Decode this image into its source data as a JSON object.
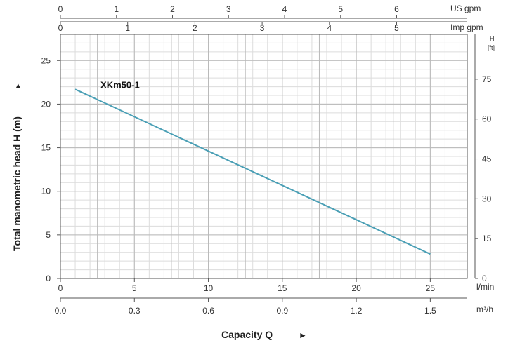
{
  "chart_data": {
    "type": "line",
    "title": "",
    "xlabel": "Capacity Q",
    "xlabel_arrow": "►",
    "ylabel": "Total manometric head H (m)",
    "ylabel_arrow": "►",
    "grid": true,
    "x_axes": {
      "lmin": {
        "unit": "l/min",
        "range": [
          0,
          27.5
        ],
        "ticks": [
          "0",
          "5",
          "10",
          "15",
          "20",
          "25"
        ],
        "tick_values": [
          0,
          5,
          10,
          15,
          20,
          25
        ]
      },
      "m3h": {
        "unit": "m³/h",
        "range": [
          0,
          1.65
        ],
        "ticks": [
          "0.0",
          "0.3",
          "0.6",
          "0.9",
          "1.2",
          "1.5"
        ],
        "tick_values": [
          0.0,
          0.3,
          0.6,
          0.9,
          1.2,
          1.5
        ]
      },
      "us_gpm": {
        "unit": "US gpm",
        "range": [
          0,
          7.26
        ],
        "ticks": [
          "0",
          "1",
          "2",
          "3",
          "4",
          "5",
          "6"
        ],
        "tick_values": [
          0,
          1,
          2,
          3,
          4,
          5,
          6
        ]
      },
      "imp_gpm": {
        "unit": "Imp gpm",
        "range": [
          0,
          6.05
        ],
        "ticks": [
          "0",
          "1",
          "2",
          "3",
          "4",
          "5"
        ],
        "tick_values": [
          0,
          1,
          2,
          3,
          4,
          5
        ]
      }
    },
    "y_axes": {
      "m": {
        "range": [
          0,
          28
        ],
        "ticks": [
          "0",
          "5",
          "10",
          "15",
          "20",
          "25"
        ],
        "tick_values": [
          0,
          5,
          10,
          15,
          20,
          25
        ]
      },
      "ft": {
        "unit_top": "H",
        "unit_bottom": "[ft]",
        "range": [
          0,
          91.86
        ],
        "ticks": [
          "0",
          "15",
          "30",
          "45",
          "60",
          "75"
        ],
        "tick_values": [
          0,
          15,
          30,
          45,
          60,
          75
        ]
      }
    },
    "series": [
      {
        "name": "XKm50-1",
        "color": "#4a9fb5",
        "x": [
          1,
          25
        ],
        "y": [
          21.7,
          2.8
        ]
      }
    ]
  }
}
